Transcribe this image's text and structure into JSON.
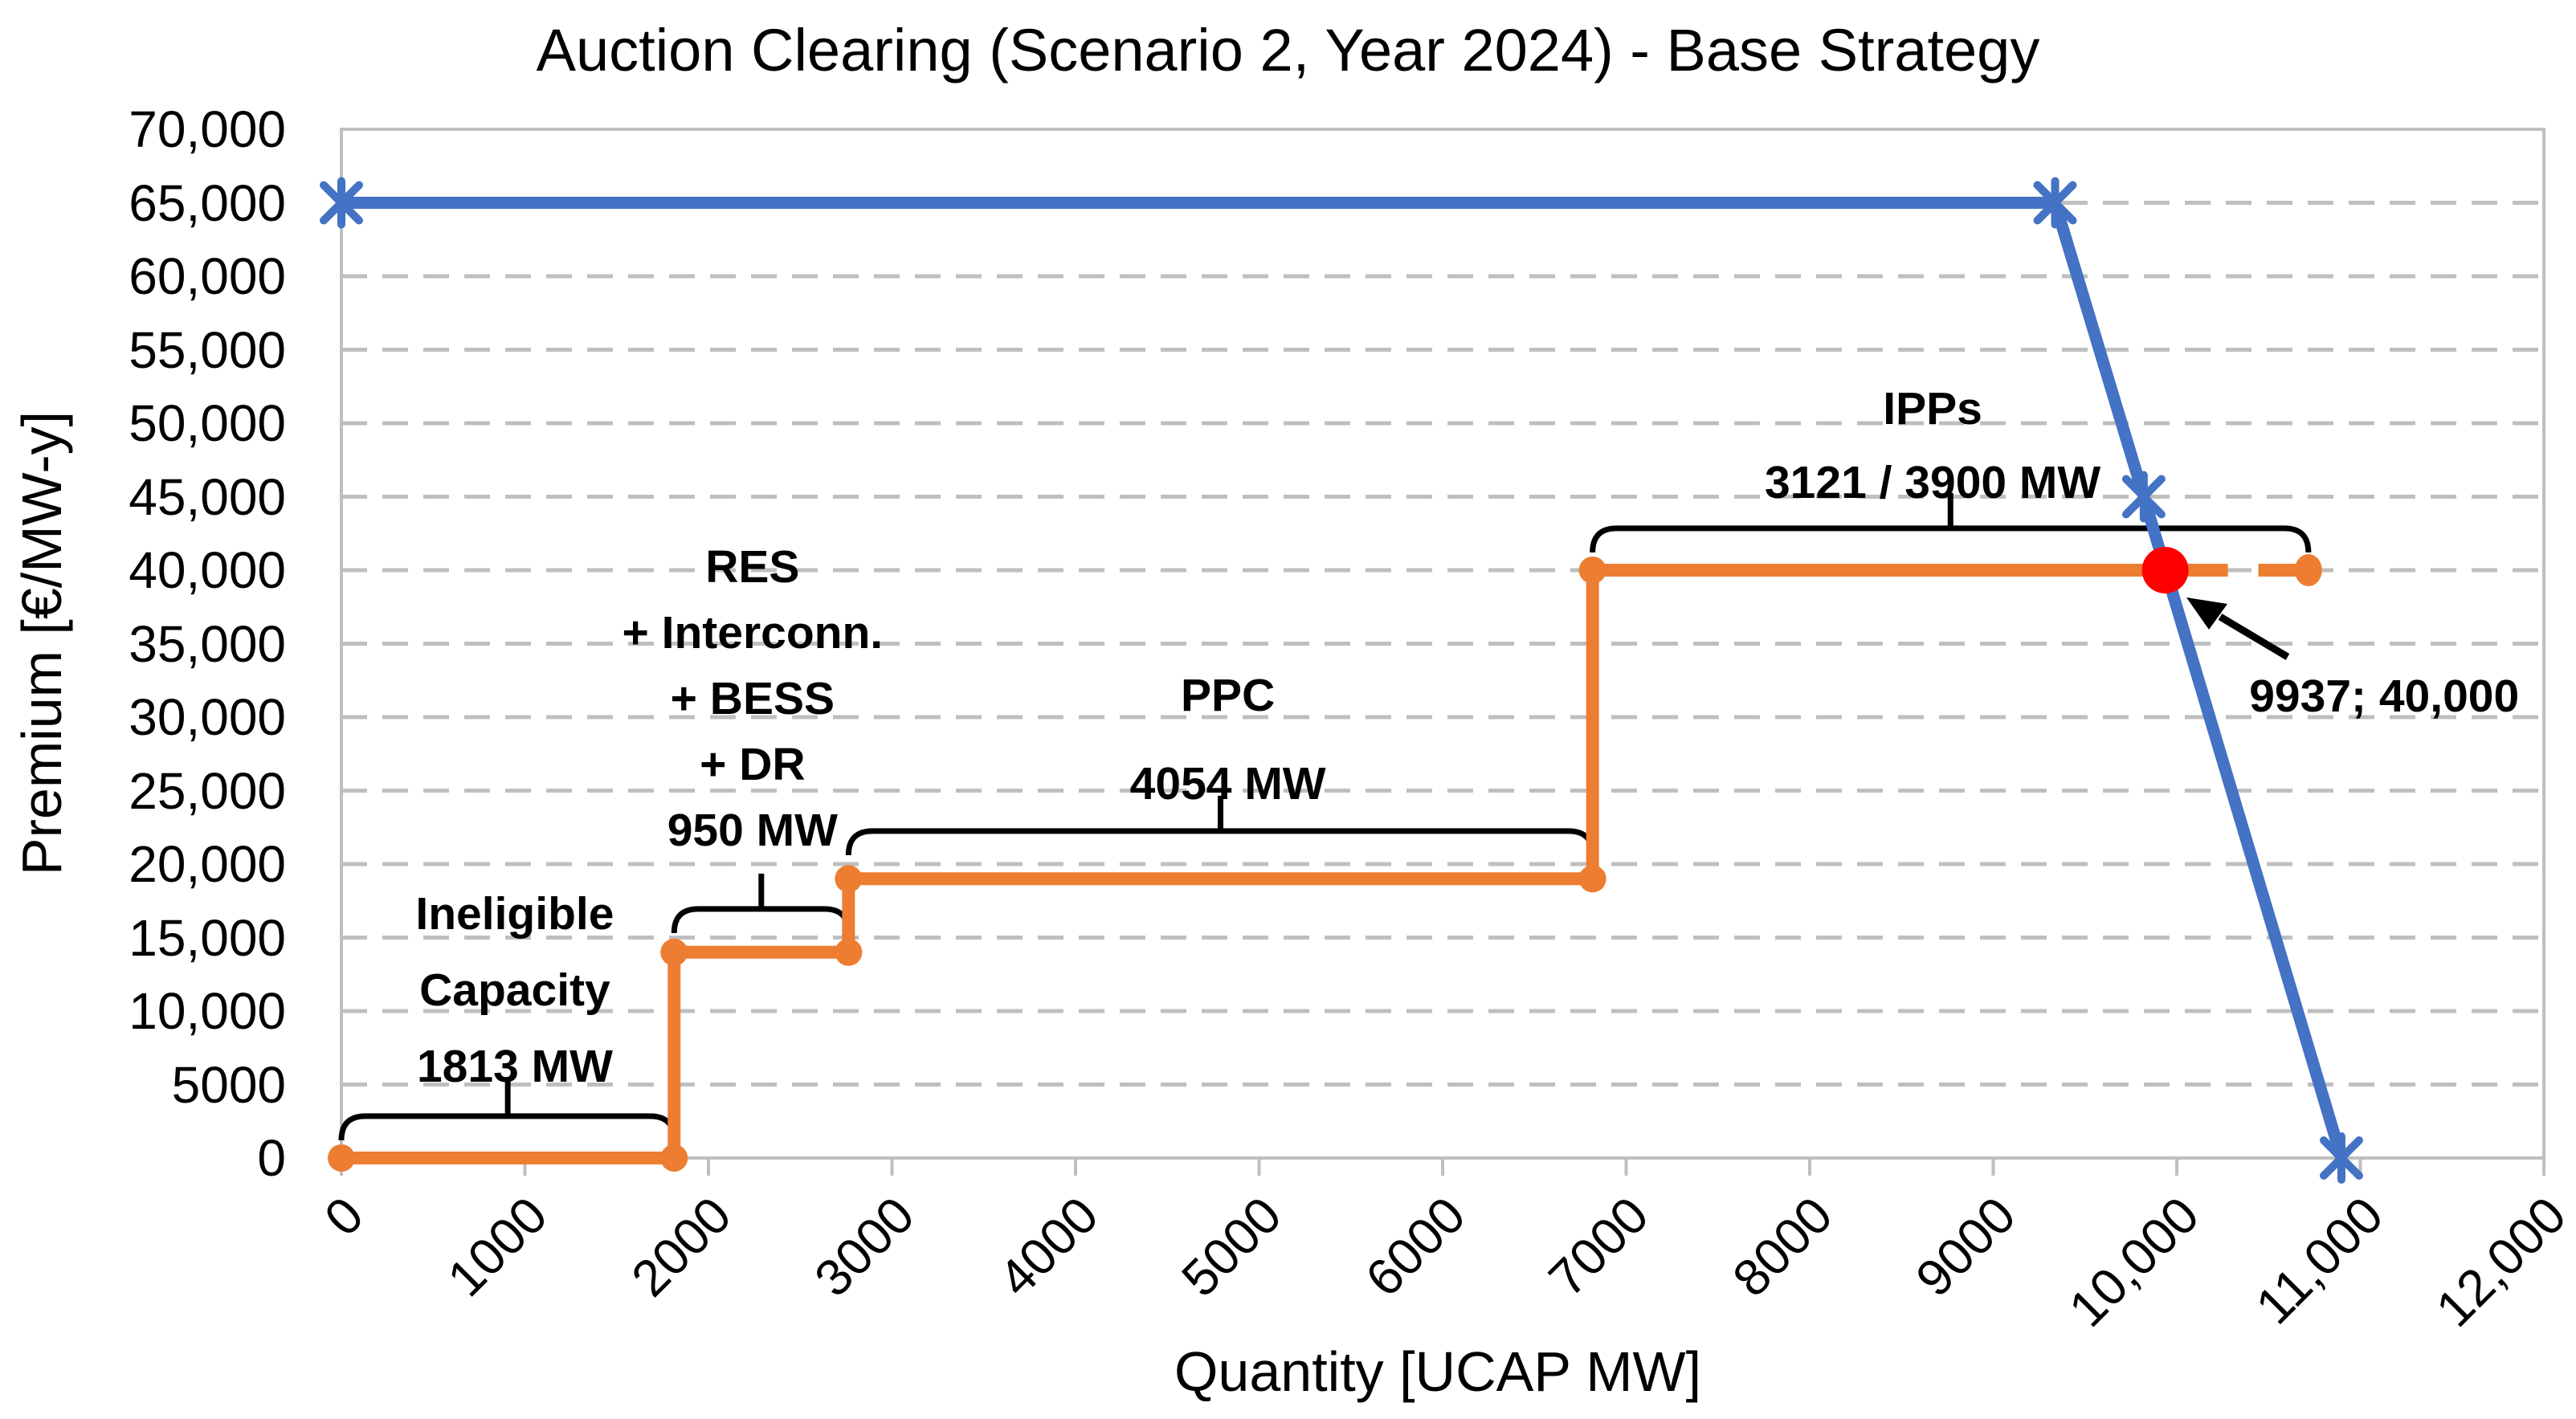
{
  "chart_data": {
    "type": "line",
    "title": "Auction Clearing (Scenario 2, Year 2024) - Base Strategy",
    "xlabel": "Quantity [UCAP MW]",
    "ylabel": "Premium [€/MW-y]",
    "xlim": [
      0,
      12000
    ],
    "ylim": [
      0,
      70000
    ],
    "grid": {
      "horizontal": "dashed",
      "vertical": "none"
    },
    "x_ticks": [
      {
        "value": 0,
        "label": "0"
      },
      {
        "value": 1000,
        "label": "1000"
      },
      {
        "value": 2000,
        "label": "2000"
      },
      {
        "value": 3000,
        "label": "3000"
      },
      {
        "value": 4000,
        "label": "4000"
      },
      {
        "value": 5000,
        "label": "5000"
      },
      {
        "value": 6000,
        "label": "6000"
      },
      {
        "value": 7000,
        "label": "7000"
      },
      {
        "value": 8000,
        "label": "8000"
      },
      {
        "value": 9000,
        "label": "9000"
      },
      {
        "value": 10000,
        "label": "10,000"
      },
      {
        "value": 11000,
        "label": "11,000"
      },
      {
        "value": 12000,
        "label": "12,000"
      }
    ],
    "y_ticks": [
      {
        "value": 0,
        "label": "0"
      },
      {
        "value": 5000,
        "label": "5000"
      },
      {
        "value": 10000,
        "label": "10,000"
      },
      {
        "value": 15000,
        "label": "15,000"
      },
      {
        "value": 20000,
        "label": "20,000"
      },
      {
        "value": 25000,
        "label": "25,000"
      },
      {
        "value": 30000,
        "label": "30,000"
      },
      {
        "value": 35000,
        "label": "35,000"
      },
      {
        "value": 40000,
        "label": "40,000"
      },
      {
        "value": 45000,
        "label": "45,000"
      },
      {
        "value": 50000,
        "label": "50,000"
      },
      {
        "value": 55000,
        "label": "55,000"
      },
      {
        "value": 60000,
        "label": "60,000"
      },
      {
        "value": 65000,
        "label": "65,000"
      },
      {
        "value": 70000,
        "label": "70,000"
      }
    ],
    "series": [
      {
        "name": "demand-curve",
        "color": "#4472C4",
        "marker": "asterisk",
        "points": [
          [
            0,
            65000
          ],
          [
            9337,
            65000
          ],
          [
            9820,
            45000
          ],
          [
            10897,
            0
          ]
        ]
      },
      {
        "name": "supply-curve",
        "color": "#ED7D31",
        "marker": "dot",
        "points": [
          [
            0,
            0
          ],
          [
            1813,
            0
          ],
          [
            1813,
            14000
          ],
          [
            2763,
            14000
          ],
          [
            2763,
            19000
          ],
          [
            6817,
            19000
          ],
          [
            6817,
            40000
          ],
          [
            9937,
            40000
          ]
        ]
      },
      {
        "name": "supply-curve-unaccepted",
        "color": "#ED7D31",
        "style": "dashed",
        "points": [
          [
            9937,
            40000
          ],
          [
            10717,
            40000
          ]
        ],
        "end_marker": "dot"
      }
    ],
    "clearing_point": {
      "x": 9937,
      "y": 40000,
      "color": "#FF0000",
      "label": "9937; 40,000",
      "label_anchor": [
        11130,
        31400
      ]
    },
    "annotations": [
      {
        "id": "ineligible",
        "lines": [
          "Ineligible",
          "Capacity",
          "1813 MW"
        ],
        "anchor": [
          945,
          16600
        ],
        "bracket": {
          "from": 0,
          "to": 1813,
          "at": 2850
        }
      },
      {
        "id": "res",
        "lines": [
          "RES",
          "+ Interconn.",
          "+ BESS",
          "+ DR",
          "950 MW"
        ],
        "anchor": [
          2240,
          40200
        ],
        "bracket": {
          "from": 1813,
          "to": 2763,
          "at": 16950
        }
      },
      {
        "id": "ppc",
        "lines": [
          "PPC",
          "4054 MW"
        ],
        "anchor": [
          4830,
          31500
        ],
        "bracket": {
          "from": 2763,
          "to": 6817,
          "at": 22250
        }
      },
      {
        "id": "ipps",
        "lines": [
          "IPPs",
          "3121 / 3900 MW"
        ],
        "anchor": [
          8670,
          51000
        ],
        "bracket": {
          "from": 6817,
          "to": 10717,
          "at": 42850
        }
      }
    ],
    "colors": {
      "demand": "#4472C4",
      "supply": "#ED7D31",
      "clearing": "#FF0000",
      "gridline": "#BFBFBF",
      "axis": "#BFBFBF",
      "text": "#000000"
    }
  }
}
